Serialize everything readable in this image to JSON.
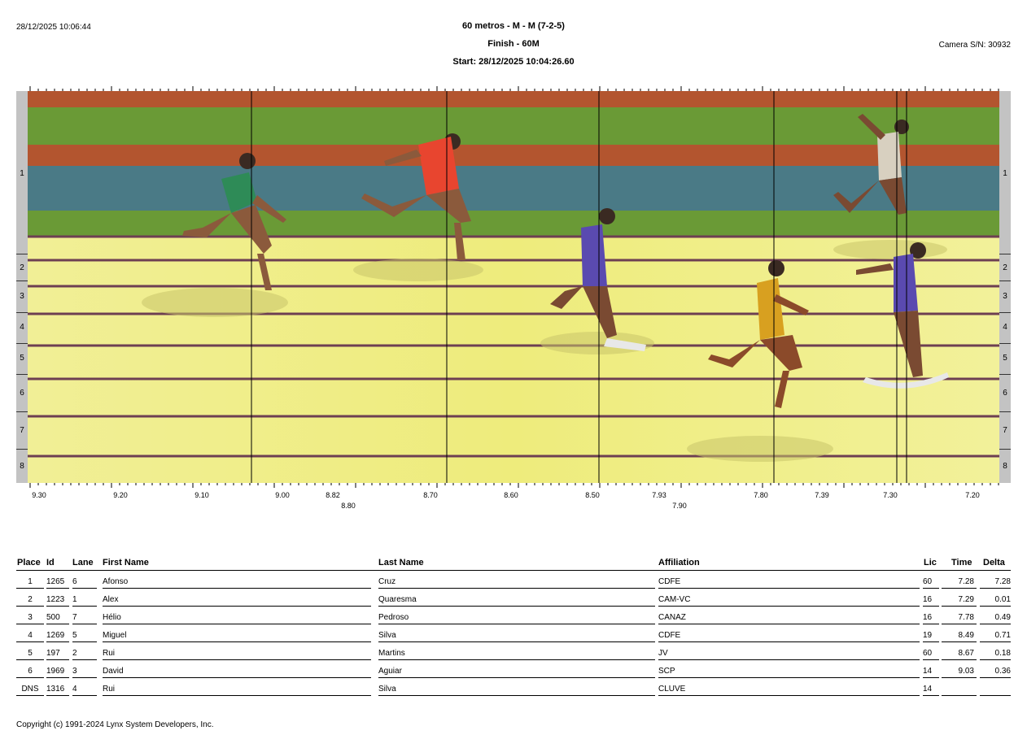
{
  "header": {
    "timestamp": "28/12/2025 10:06:44",
    "event_title": "60 metros - M - M (7-2-5)",
    "finish_label": "Finish - 60M",
    "start_label": "Start: 28/12/2025 10:04:26.60",
    "camera": "Camera S/N: 30932"
  },
  "photo": {
    "lanes": [
      "1",
      "2",
      "3",
      "4",
      "5",
      "6",
      "7",
      "8"
    ],
    "time_ticks": [
      "9.30",
      "9.20",
      "9.10",
      "9.00",
      "8.82",
      "8.70",
      "8.60",
      "8.50",
      "7.93",
      "7.90",
      "7.80",
      "7.39",
      "7.30",
      "7.20"
    ],
    "time_ticks_second_row": [
      "8.80",
      "7.90"
    ],
    "colors": {
      "band_red": "#b3552f",
      "band_green": "#6a9a36",
      "band_blue": "#4a7a86",
      "track_yellow": "#f0ee86",
      "lane_line": "#6d3f52"
    }
  },
  "results": {
    "columns": {
      "place": "Place",
      "id": "Id",
      "lane": "Lane",
      "first_name": "First Name",
      "last_name": "Last Name",
      "affiliation": "Affiliation",
      "lic": "Lic",
      "time": "Time",
      "delta": "Delta"
    },
    "rows": [
      {
        "place": "1",
        "id": "1265",
        "lane": "6",
        "first": "Afonso",
        "last": "Cruz",
        "aff": "CDFE",
        "lic": "60",
        "time": "7.28",
        "delta": "7.28"
      },
      {
        "place": "2",
        "id": "1223",
        "lane": "1",
        "first": "Alex",
        "last": "Quaresma",
        "aff": "CAM-VC",
        "lic": "16",
        "time": "7.29",
        "delta": "0.01"
      },
      {
        "place": "3",
        "id": "500",
        "lane": "7",
        "first": "Hélio",
        "last": "Pedroso",
        "aff": "CANAZ",
        "lic": "16",
        "time": "7.78",
        "delta": "0.49"
      },
      {
        "place": "4",
        "id": "1269",
        "lane": "5",
        "first": "Miguel",
        "last": "Silva",
        "aff": "CDFE",
        "lic": "19",
        "time": "8.49",
        "delta": "0.71"
      },
      {
        "place": "5",
        "id": "197",
        "lane": "2",
        "first": "Rui",
        "last": "Martins",
        "aff": "JV",
        "lic": "60",
        "time": "8.67",
        "delta": "0.18"
      },
      {
        "place": "6",
        "id": "1969",
        "lane": "3",
        "first": "David",
        "last": "Aguiar",
        "aff": "SCP",
        "lic": "14",
        "time": "9.03",
        "delta": "0.36"
      },
      {
        "place": "DNS",
        "id": "1316",
        "lane": "4",
        "first": "Rui",
        "last": "Silva",
        "aff": "CLUVE",
        "lic": "14",
        "time": "",
        "delta": ""
      }
    ]
  },
  "footer": {
    "copyright": "Copyright (c) 1991-2024 Lynx System Developers, Inc."
  }
}
